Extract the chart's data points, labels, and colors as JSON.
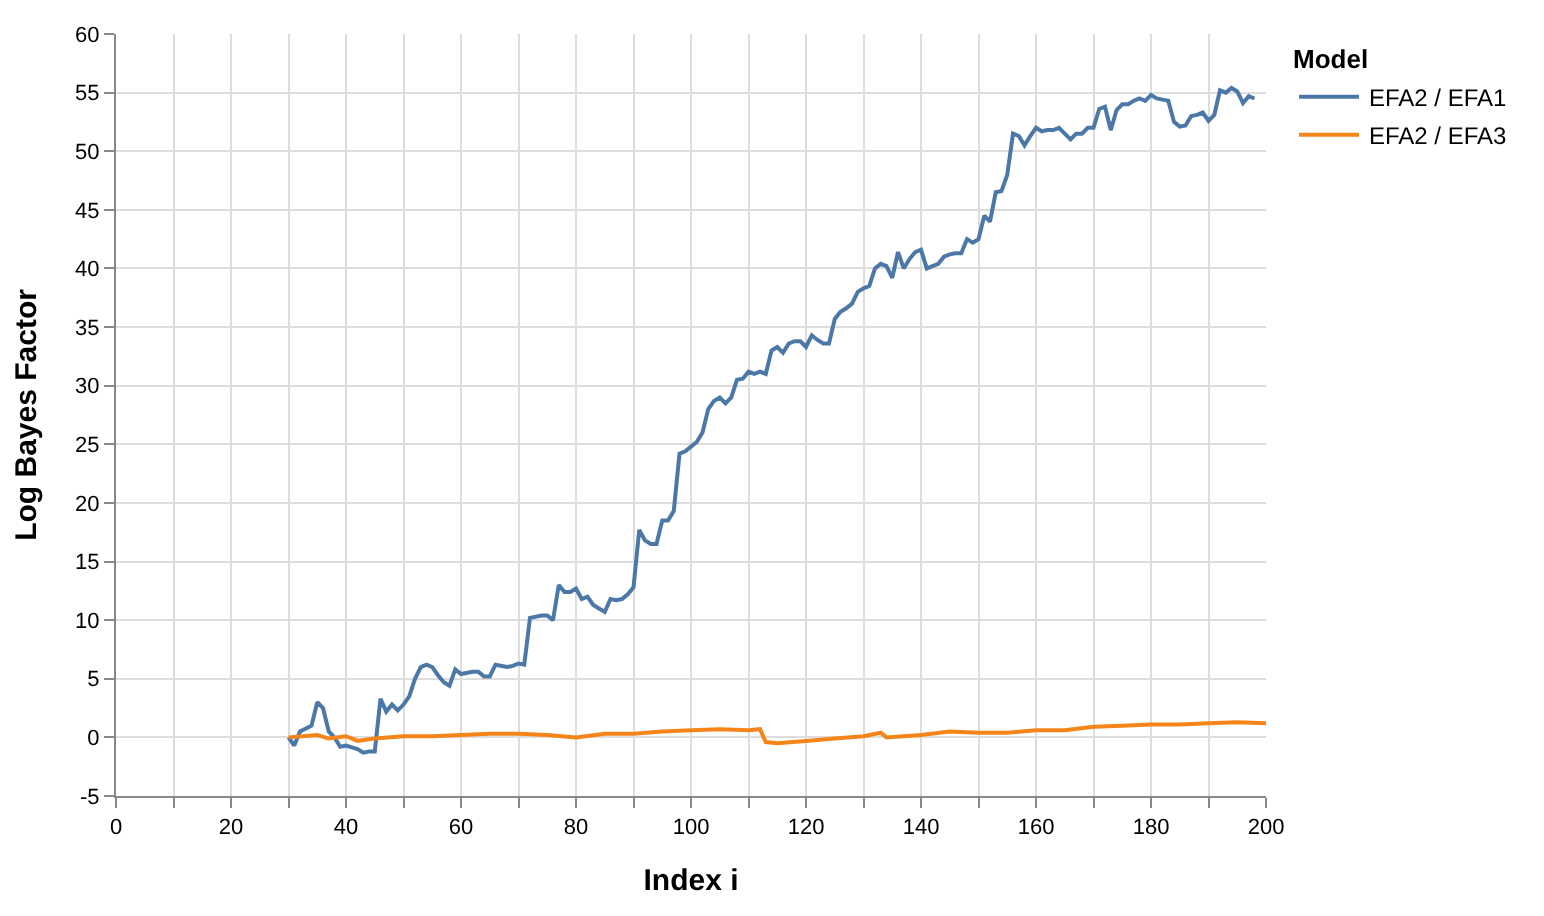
{
  "chart_data": {
    "type": "line",
    "xlabel": "Index i",
    "ylabel": "Log Bayes Factor",
    "legend_title": "Model",
    "legend": "top right",
    "grid": true,
    "marker": "none",
    "line_style": "solid",
    "xlim": [
      0,
      200
    ],
    "ylim": [
      -5,
      60
    ],
    "xticks": [
      0,
      {
        "value": 10,
        "label": null
      },
      20,
      {
        "value": 30,
        "label": null
      },
      40,
      {
        "value": 50,
        "label": null
      },
      60,
      {
        "value": 70,
        "label": null
      },
      80,
      {
        "value": 90,
        "label": null
      },
      100,
      {
        "value": 110,
        "label": null
      },
      120,
      {
        "value": 130,
        "label": null
      },
      140,
      {
        "value": 150,
        "label": null
      },
      160,
      {
        "value": 170,
        "label": null
      },
      180,
      {
        "value": 190,
        "label": null
      },
      200
    ],
    "yticks": [
      -5,
      0,
      5,
      10,
      15,
      20,
      25,
      30,
      35,
      40,
      45,
      50,
      55,
      60
    ],
    "series": [
      {
        "name": "EFA2 / EFA1",
        "color": "#4c78a8",
        "x": [
          30,
          31,
          32,
          34,
          35,
          36,
          37,
          38,
          39,
          40,
          42,
          43,
          44,
          45,
          46,
          47,
          48,
          49,
          50,
          51,
          52,
          53,
          54,
          55,
          56,
          57,
          58,
          59,
          60,
          62,
          63,
          64,
          65,
          66,
          68,
          69,
          70,
          71,
          72,
          74,
          75,
          76,
          77,
          78,
          79,
          80,
          81,
          82,
          83,
          84,
          85,
          86,
          87,
          88,
          89,
          90,
          91,
          92,
          93,
          94,
          95,
          96,
          97,
          98,
          99,
          100,
          101,
          102,
          103,
          104,
          105,
          106,
          107,
          108,
          109,
          110,
          111,
          112,
          113,
          114,
          115,
          116,
          117,
          118,
          119,
          120,
          121,
          122,
          123,
          124,
          125,
          126,
          127,
          128,
          129,
          130,
          131,
          132,
          133,
          134,
          135,
          136,
          137,
          138,
          139,
          140,
          141,
          142,
          143,
          144,
          145,
          146,
          147,
          148,
          149,
          150,
          151,
          152,
          153,
          154,
          155,
          156,
          157,
          158,
          159,
          160,
          161,
          162,
          163,
          164,
          165,
          166,
          167,
          168,
          169,
          170,
          171,
          172,
          173,
          174,
          175,
          176,
          177,
          178,
          179,
          180,
          181,
          182,
          183,
          184,
          185,
          186,
          187,
          188,
          189,
          190,
          191,
          192,
          193,
          194,
          195,
          196,
          197,
          198
        ],
        "values": [
          0,
          -0.7,
          0.5,
          1,
          3,
          2.5,
          0.5,
          0,
          -0.8,
          -0.7,
          -1,
          -1.3,
          -1.2,
          -1.2,
          3.3,
          2.2,
          2.8,
          2.3,
          2.8,
          3.5,
          5,
          6,
          6.2,
          6,
          5.3,
          4.7,
          4.4,
          5.8,
          5.4,
          5.6,
          5.6,
          5.2,
          5.2,
          6.2,
          6,
          6.1,
          6.3,
          6.2,
          10.2,
          10.4,
          10.4,
          10,
          13,
          12.4,
          12.4,
          12.7,
          11.8,
          12,
          11.3,
          11,
          10.7,
          11.8,
          11.7,
          11.8,
          12.2,
          12.8,
          17.7,
          16.8,
          16.5,
          16.5,
          18.5,
          18.5,
          19.3,
          24.2,
          24.4,
          24.8,
          25.2,
          26,
          28,
          28.7,
          29,
          28.5,
          29,
          30.5,
          30.6,
          31.2,
          31,
          31.2,
          31,
          33,
          33.3,
          32.8,
          33.6,
          33.8,
          33.8,
          33.3,
          34.3,
          33.9,
          33.6,
          33.6,
          35.7,
          36.3,
          36.6,
          37,
          38,
          38.3,
          38.5,
          40,
          40.4,
          40.2,
          39.2,
          41.4,
          40,
          40.8,
          41.4,
          41.6,
          40,
          40.2,
          40.4,
          41,
          41.2,
          41.3,
          41.3,
          42.5,
          42.2,
          42.5,
          44.5,
          44,
          46.5,
          46.6,
          48,
          51.5,
          51.3,
          50.5,
          51.3,
          52,
          51.7,
          51.8,
          51.8,
          52,
          51.5,
          51,
          51.5,
          51.5,
          52,
          52,
          53.6,
          53.8,
          51.8,
          53.5,
          54,
          54,
          54.3,
          54.5,
          54.3,
          54.8,
          54.5,
          54.4,
          54.3,
          52.5,
          52.1,
          52.2,
          53,
          53.1,
          53.3,
          52.6,
          53.1,
          55.2,
          55,
          55.4,
          55.1,
          54.1,
          54.7,
          54.5
        ]
      },
      {
        "name": "EFA2 / EFA3",
        "color": "#f58518",
        "x": [
          30,
          35,
          37,
          40,
          42,
          45,
          50,
          55,
          60,
          65,
          70,
          75,
          80,
          85,
          90,
          95,
          100,
          105,
          110,
          112,
          113,
          115,
          120,
          125,
          130,
          133,
          134,
          140,
          145,
          150,
          155,
          160,
          165,
          170,
          175,
          180,
          185,
          190,
          195,
          200
        ],
        "values": [
          0,
          0.2,
          -0.1,
          0.1,
          -0.3,
          -0.1,
          0.1,
          0.1,
          0.2,
          0.3,
          0.3,
          0.2,
          0,
          0.3,
          0.3,
          0.5,
          0.6,
          0.7,
          0.6,
          0.7,
          -0.4,
          -0.5,
          -0.3,
          -0.1,
          0.1,
          0.4,
          0,
          0.2,
          0.5,
          0.4,
          0.4,
          0.6,
          0.6,
          0.9,
          1,
          1.1,
          1.1,
          1.2,
          1.3,
          1.2
        ]
      }
    ]
  }
}
